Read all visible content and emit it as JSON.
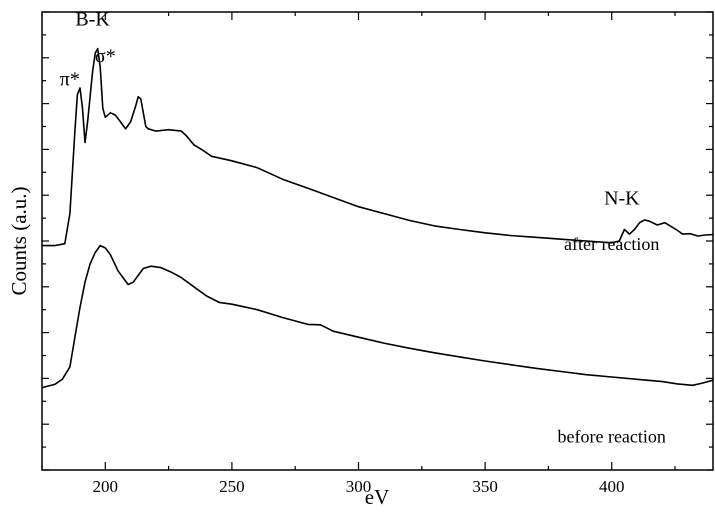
{
  "chart_data": {
    "type": "line",
    "xlabel": "eV",
    "ylabel": "Counts (a.u.)",
    "xlim": [
      175,
      440
    ],
    "ylim": [
      0,
      100
    ],
    "y_tick_labels": "none",
    "grid": false,
    "x_ticks": [
      {
        "value": 200,
        "label": "200"
      },
      {
        "value": 250,
        "label": "250"
      },
      {
        "value": 300,
        "label": "300"
      },
      {
        "value": 350,
        "label": "350"
      },
      {
        "value": 400,
        "label": "400"
      }
    ],
    "series": [
      {
        "label": "after reaction",
        "label_at": [
          400,
          48
        ],
        "points": [
          [
            175,
            49
          ],
          [
            180,
            49
          ],
          [
            184,
            49.4
          ],
          [
            186,
            56
          ],
          [
            188,
            74
          ],
          [
            189,
            82
          ],
          [
            190,
            83.4
          ],
          [
            191,
            79
          ],
          [
            192,
            71.5
          ],
          [
            193,
            76
          ],
          [
            195,
            87
          ],
          [
            196,
            91
          ],
          [
            197,
            92
          ],
          [
            198,
            88
          ],
          [
            199,
            79
          ],
          [
            200,
            77
          ],
          [
            202,
            78
          ],
          [
            204,
            77.5
          ],
          [
            206,
            76
          ],
          [
            208,
            74.5
          ],
          [
            210,
            76
          ],
          [
            212,
            79.5
          ],
          [
            213,
            81.5
          ],
          [
            214,
            81
          ],
          [
            215,
            78
          ],
          [
            216,
            75
          ],
          [
            217,
            74.5
          ],
          [
            220,
            74
          ],
          [
            225,
            74.3
          ],
          [
            230,
            74
          ],
          [
            232,
            73
          ],
          [
            235,
            71
          ],
          [
            238,
            70
          ],
          [
            242,
            68.5
          ],
          [
            250,
            67.5
          ],
          [
            260,
            66
          ],
          [
            270,
            63.5
          ],
          [
            280,
            61.5
          ],
          [
            290,
            59.5
          ],
          [
            300,
            57.5
          ],
          [
            310,
            56
          ],
          [
            320,
            54.5
          ],
          [
            330,
            53.3
          ],
          [
            340,
            52.5
          ],
          [
            350,
            51.8
          ],
          [
            360,
            51.2
          ],
          [
            370,
            50.8
          ],
          [
            380,
            50.4
          ],
          [
            390,
            50
          ],
          [
            400,
            49.6
          ],
          [
            403,
            50
          ],
          [
            405,
            52.5
          ],
          [
            407,
            51.5
          ],
          [
            409,
            52.5
          ],
          [
            411,
            54
          ],
          [
            413,
            54.6
          ],
          [
            415,
            54.3
          ],
          [
            418,
            53.5
          ],
          [
            421,
            54
          ],
          [
            424,
            53
          ],
          [
            426,
            52.3
          ],
          [
            428,
            51.5
          ],
          [
            431,
            51.6
          ],
          [
            434,
            51.1
          ],
          [
            437,
            51.3
          ],
          [
            440,
            51.4
          ]
        ]
      },
      {
        "label": "before reaction",
        "label_at": [
          400,
          6
        ],
        "points": [
          [
            175,
            18
          ],
          [
            180,
            18.7
          ],
          [
            183,
            19.8
          ],
          [
            186,
            22.5
          ],
          [
            188,
            29
          ],
          [
            190,
            35.5
          ],
          [
            192,
            41
          ],
          [
            194,
            45
          ],
          [
            196,
            47.5
          ],
          [
            198,
            49
          ],
          [
            200,
            48.5
          ],
          [
            202,
            47
          ],
          [
            205,
            43.5
          ],
          [
            207,
            42
          ],
          [
            209,
            40.5
          ],
          [
            211,
            41
          ],
          [
            213,
            42.5
          ],
          [
            215,
            44
          ],
          [
            218,
            44.5
          ],
          [
            222,
            44.2
          ],
          [
            226,
            43.2
          ],
          [
            230,
            42
          ],
          [
            235,
            40
          ],
          [
            240,
            38
          ],
          [
            245,
            36.6
          ],
          [
            250,
            36.2
          ],
          [
            260,
            35
          ],
          [
            270,
            33.3
          ],
          [
            280,
            31.8
          ],
          [
            285,
            31.7
          ],
          [
            290,
            30.3
          ],
          [
            300,
            29
          ],
          [
            310,
            27.7
          ],
          [
            320,
            26.6
          ],
          [
            330,
            25.6
          ],
          [
            340,
            24.7
          ],
          [
            350,
            23.8
          ],
          [
            360,
            23
          ],
          [
            370,
            22.2
          ],
          [
            380,
            21.5
          ],
          [
            390,
            20.8
          ],
          [
            400,
            20.3
          ],
          [
            410,
            19.8
          ],
          [
            420,
            19.3
          ],
          [
            426,
            18.8
          ],
          [
            432,
            18.5
          ],
          [
            436,
            19
          ],
          [
            440,
            19.6
          ]
        ]
      }
    ],
    "annotations": [
      {
        "text": "π*",
        "at": [
          186,
          84
        ]
      },
      {
        "text": "B-K",
        "at": [
          195,
          97
        ]
      },
      {
        "text": "σ*",
        "at": [
          200,
          89
        ]
      },
      {
        "text": "N-K",
        "at": [
          404,
          58
        ]
      }
    ],
    "line_color": "#000000"
  }
}
